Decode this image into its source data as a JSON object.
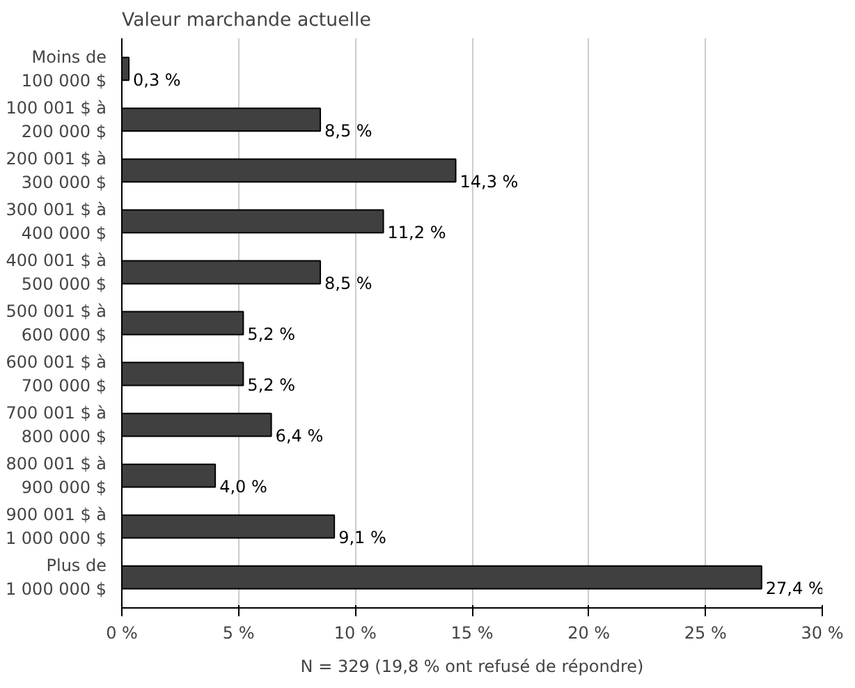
{
  "chart_data": {
    "type": "bar",
    "orientation": "horizontal",
    "title": "Valeur marchande actuelle",
    "categories": [
      "Moins de\n100 000 $",
      "100 001 $ à\n200 000 $",
      "200 001 $ à\n300 000 $",
      "300 001 $ à\n400 000 $",
      "400 001 $ à\n500 000 $",
      "500 001 $ à\n600 000 $",
      "600 001 $ à\n700 000 $",
      "700 001 $ à\n800 000 $",
      "800 001 $ à\n900 000 $",
      "900 001 $ à\n1 000 000 $",
      "Plus de\n1 000 000 $"
    ],
    "values": [
      0.3,
      8.5,
      14.3,
      11.2,
      8.5,
      5.2,
      5.2,
      6.4,
      4.0,
      9.1,
      27.4
    ],
    "value_labels": [
      "0,3 %",
      "8,5 %",
      "14,3 %",
      "11,2 %",
      "8,5 %",
      "5,2 %",
      "5,2 %",
      "6,4 %",
      "4,0 %",
      "9,1 %",
      "27,4 %"
    ],
    "color": "#404040",
    "xlim": [
      0,
      30
    ],
    "xticks": [
      {
        "value": 0,
        "label": "0 %"
      },
      {
        "value": 5,
        "label": "5 %"
      },
      {
        "value": 10,
        "label": "10 %"
      },
      {
        "value": 15,
        "label": "15 %"
      },
      {
        "value": 20,
        "label": "20 %"
      },
      {
        "value": 25,
        "label": "25 %"
      },
      {
        "value": 30,
        "label": "30 %"
      }
    ],
    "grid": "x",
    "annotations": [
      "N = 329 (19,8 % ont refusé de répondre)"
    ]
  }
}
